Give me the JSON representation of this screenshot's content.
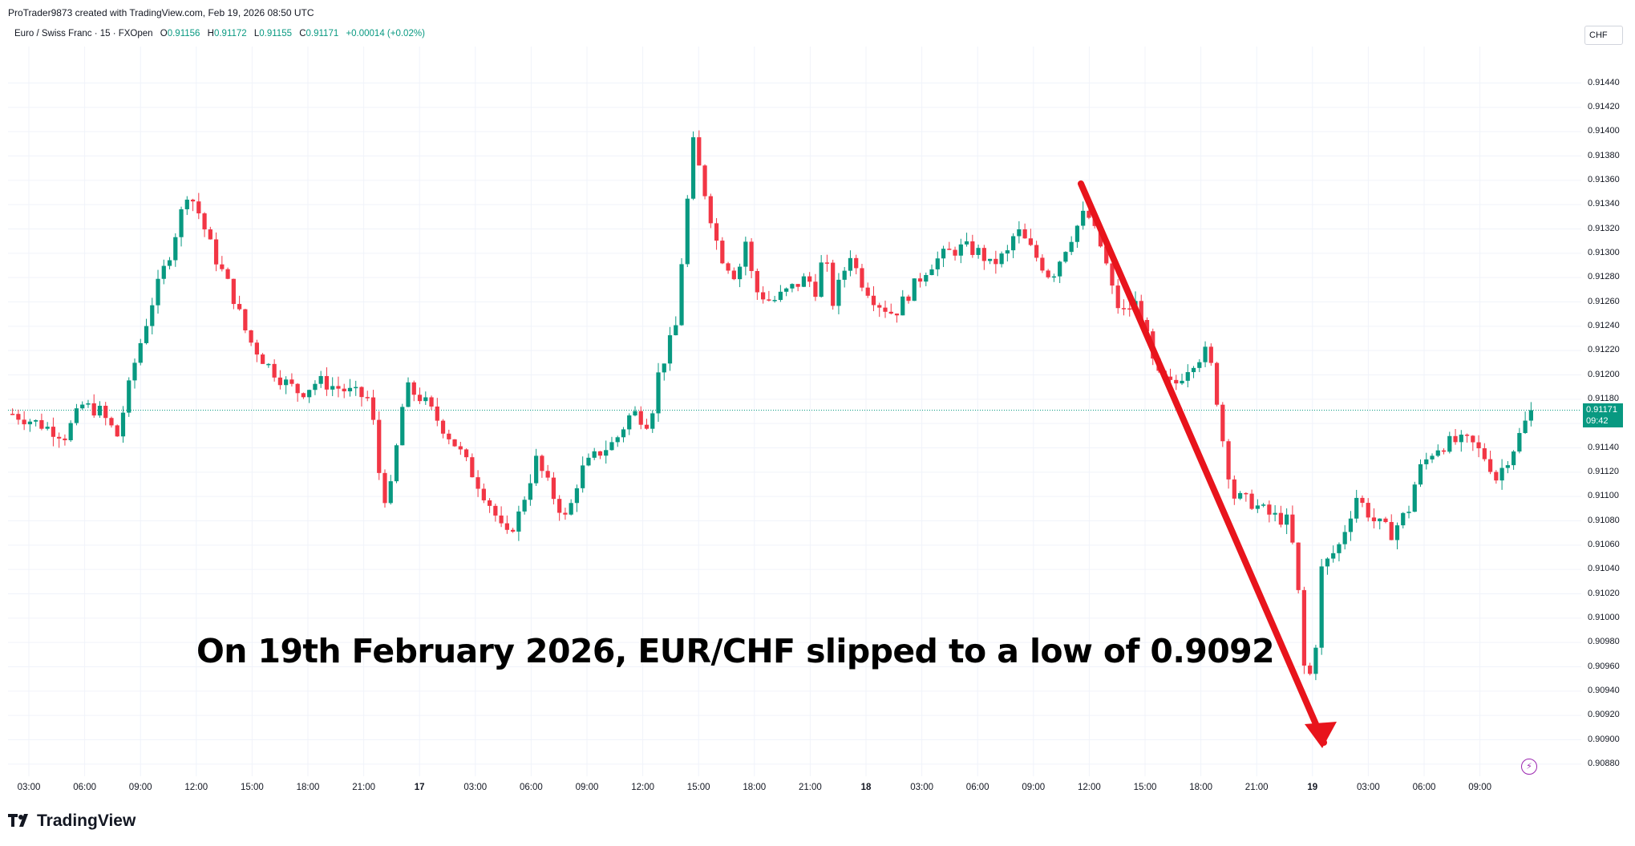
{
  "header": {
    "creator_line": "ProTrader9873 created with TradingView.com, Feb 19, 2026 08:50 UTC",
    "symbol_line": "Euro / Swiss Franc · 15 · FXOpen",
    "ohlc": [
      {
        "label": "O",
        "value": "0.91156"
      },
      {
        "label": "H",
        "value": "0.91172"
      },
      {
        "label": "L",
        "value": "0.91155"
      },
      {
        "label": "C",
        "value": "0.91171"
      }
    ],
    "change": "+0.00014 (+0.02%)"
  },
  "price_axis": {
    "unit": "CHF",
    "current_price": "0.91171",
    "countdown": "09:42"
  },
  "annotation": "On 19th February 2026, EUR/CHF slipped to a low of 0.9092",
  "brand": "TradingView",
  "colors": {
    "up": "#089981",
    "down": "#f23645",
    "arrow": "#e8141c",
    "grid": "#f0f3fa",
    "price_line": "#089981",
    "brand_purple": "#9c27b0"
  },
  "icons": {
    "logo": "tradingview-logo-icon",
    "bolt": "lightning-icon"
  },
  "chart_data": {
    "type": "candlestick",
    "interval": "15",
    "y_range": [
      0.9087,
      0.9147
    ],
    "y_ticks": [
      "0.91440",
      "0.91420",
      "0.91400",
      "0.91380",
      "0.91360",
      "0.91340",
      "0.91320",
      "0.91300",
      "0.91280",
      "0.91260",
      "0.91240",
      "0.91220",
      "0.91200",
      "0.91180",
      "0.91160",
      "0.91140",
      "0.91120",
      "0.91100",
      "0.91080",
      "0.91060",
      "0.91040",
      "0.91020",
      "0.91000",
      "0.90980",
      "0.90960",
      "0.90940",
      "0.90920",
      "0.90900",
      "0.90880"
    ],
    "x_ticks": [
      {
        "label": "03:00",
        "bold": false
      },
      {
        "label": "06:00",
        "bold": false
      },
      {
        "label": "09:00",
        "bold": false
      },
      {
        "label": "12:00",
        "bold": false
      },
      {
        "label": "15:00",
        "bold": false
      },
      {
        "label": "18:00",
        "bold": false
      },
      {
        "label": "21:00",
        "bold": false
      },
      {
        "label": "17",
        "bold": true
      },
      {
        "label": "03:00",
        "bold": false
      },
      {
        "label": "06:00",
        "bold": false
      },
      {
        "label": "09:00",
        "bold": false
      },
      {
        "label": "12:00",
        "bold": false
      },
      {
        "label": "15:00",
        "bold": false
      },
      {
        "label": "18:00",
        "bold": false
      },
      {
        "label": "21:00",
        "bold": false
      },
      {
        "label": "18",
        "bold": true
      },
      {
        "label": "03:00",
        "bold": false
      },
      {
        "label": "06:00",
        "bold": false
      },
      {
        "label": "09:00",
        "bold": false
      },
      {
        "label": "12:00",
        "bold": false
      },
      {
        "label": "15:00",
        "bold": false
      },
      {
        "label": "18:00",
        "bold": false
      },
      {
        "label": "21:00",
        "bold": false
      },
      {
        "label": "19",
        "bold": true
      },
      {
        "label": "03:00",
        "bold": false
      },
      {
        "label": "06:00",
        "bold": false
      },
      {
        "label": "09:00",
        "bold": false
      }
    ],
    "current_price": 0.91171,
    "price_path": [
      [
        0,
        0.91168
      ],
      [
        3,
        0.9116
      ],
      [
        6,
        0.9115
      ],
      [
        8,
        0.91175
      ],
      [
        10,
        0.9117
      ],
      [
        12,
        0.9115
      ],
      [
        14,
        0.9121
      ],
      [
        16,
        0.9126
      ],
      [
        18,
        0.913
      ],
      [
        20,
        0.9135
      ],
      [
        21,
        0.9134
      ],
      [
        23,
        0.913
      ],
      [
        25,
        0.9127
      ],
      [
        27,
        0.9123
      ],
      [
        29,
        0.9121
      ],
      [
        31,
        0.91195
      ],
      [
        33,
        0.91185
      ],
      [
        35,
        0.91195
      ],
      [
        37,
        0.9119
      ],
      [
        39,
        0.91185
      ],
      [
        41,
        0.9118
      ],
      [
        42,
        0.9112
      ],
      [
        43,
        0.9109
      ],
      [
        44,
        0.9114
      ],
      [
        45,
        0.9119
      ],
      [
        47,
        0.9118
      ],
      [
        49,
        0.9116
      ],
      [
        51,
        0.9114
      ],
      [
        53,
        0.91115
      ],
      [
        55,
        0.9109
      ],
      [
        56.5,
        0.91065
      ],
      [
        58,
        0.91085
      ],
      [
        60,
        0.9113
      ],
      [
        62,
        0.911
      ],
      [
        63.5,
        0.9108
      ],
      [
        65,
        0.9112
      ],
      [
        67,
        0.91135
      ],
      [
        69,
        0.91145
      ],
      [
        71,
        0.9117
      ],
      [
        73,
        0.9116
      ],
      [
        74,
        0.912
      ],
      [
        76,
        0.9124
      ],
      [
        77,
        0.9132
      ],
      [
        78,
        0.9139
      ],
      [
        79,
        0.9136
      ],
      [
        81,
        0.913
      ],
      [
        83,
        0.9128
      ],
      [
        84,
        0.9131
      ],
      [
        85,
        0.9127
      ],
      [
        87,
        0.9126
      ],
      [
        89,
        0.9127
      ],
      [
        91,
        0.9128
      ],
      [
        92,
        0.9127
      ],
      [
        93,
        0.913
      ],
      [
        94,
        0.9126
      ],
      [
        96,
        0.913
      ],
      [
        97,
        0.9128
      ],
      [
        99,
        0.9126
      ],
      [
        101,
        0.9125
      ],
      [
        103,
        0.9127
      ],
      [
        105,
        0.9129
      ],
      [
        107,
        0.913
      ],
      [
        109,
        0.91305
      ],
      [
        111,
        0.913
      ],
      [
        112,
        0.9129
      ],
      [
        114,
        0.913
      ],
      [
        115,
        0.9132
      ],
      [
        117,
        0.913
      ],
      [
        119,
        0.9128
      ],
      [
        121,
        0.9131
      ],
      [
        123,
        0.91335
      ],
      [
        125,
        0.913
      ],
      [
        126,
        0.9127
      ],
      [
        127,
        0.9125
      ],
      [
        129,
        0.9126
      ],
      [
        130,
        0.9123
      ],
      [
        131,
        0.912
      ],
      [
        133,
        0.9119
      ],
      [
        135,
        0.9121
      ],
      [
        137,
        0.9122
      ],
      [
        138,
        0.9118
      ],
      [
        139,
        0.9113
      ],
      [
        140,
        0.911
      ],
      [
        142,
        0.91095
      ],
      [
        144,
        0.91085
      ],
      [
        146,
        0.9108
      ],
      [
        147,
        0.9105
      ],
      [
        148,
        0.9096
      ],
      [
        149,
        0.9095
      ],
      [
        150,
        0.9104
      ],
      [
        152,
        0.9106
      ],
      [
        154,
        0.911
      ],
      [
        156,
        0.9108
      ],
      [
        158,
        0.9107
      ],
      [
        160,
        0.9109
      ],
      [
        161,
        0.9112
      ],
      [
        163,
        0.9114
      ],
      [
        165,
        0.91145
      ],
      [
        167,
        0.91145
      ],
      [
        169,
        0.9113
      ],
      [
        170,
        0.91115
      ],
      [
        172,
        0.9114
      ],
      [
        174,
        0.91171
      ]
    ]
  }
}
